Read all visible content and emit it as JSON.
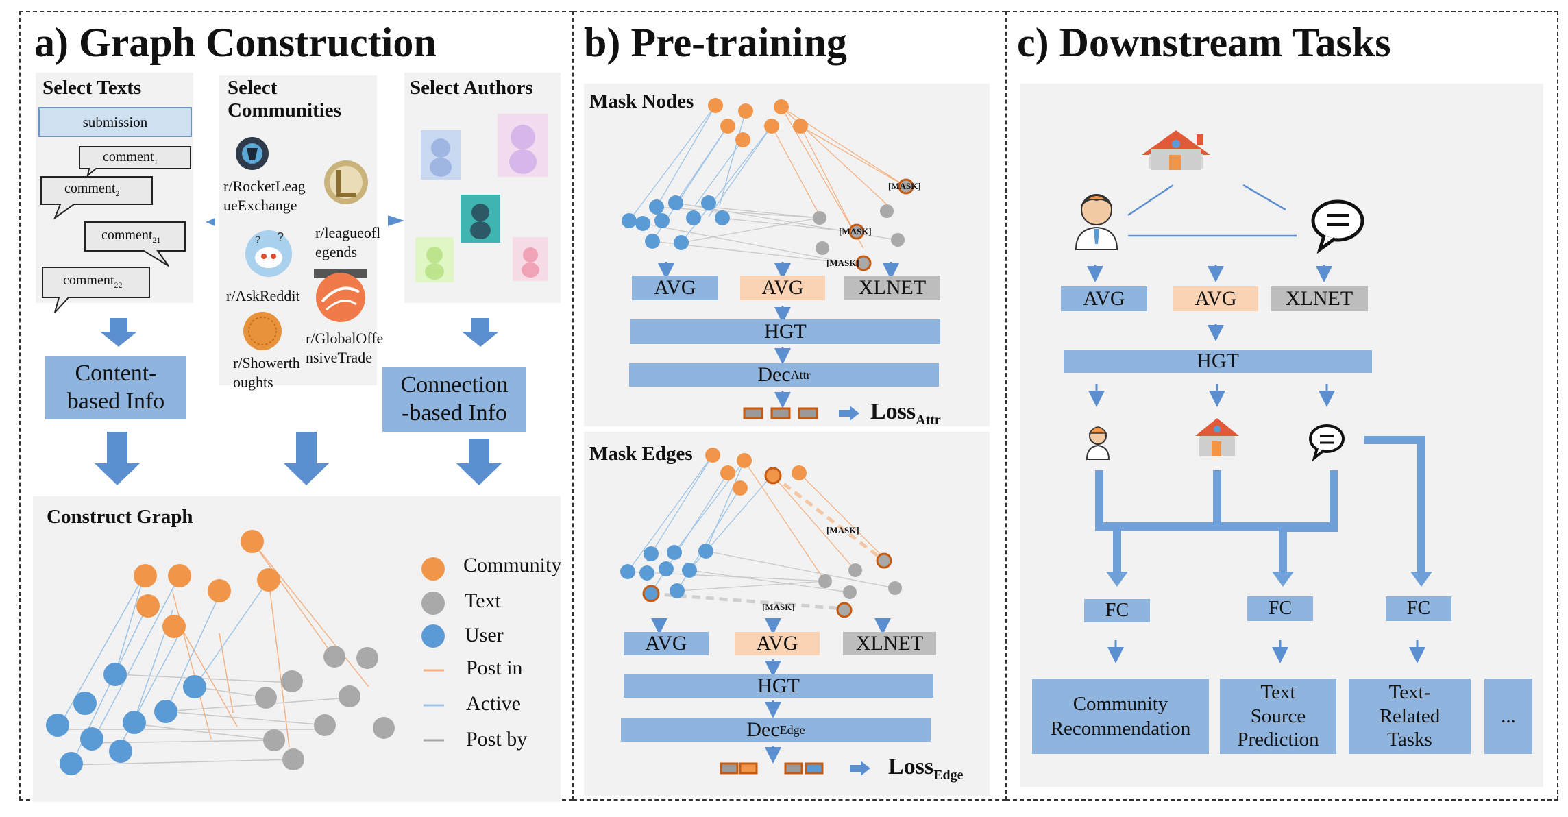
{
  "panels": {
    "a": {
      "title": "a) Graph Construction",
      "select_texts": "Select Texts",
      "select_communities": "Select\nCommunities",
      "select_authors": "Select Authors",
      "submission": "submission",
      "comments": [
        {
          "base": "comment",
          "sub": "1"
        },
        {
          "base": "comment",
          "sub": "2"
        },
        {
          "base": "comment",
          "sub": "21"
        },
        {
          "base": "comment",
          "sub": "22"
        }
      ],
      "communities": [
        "r/RocketLeag\nueExchange",
        "r/AskReddit",
        "r/Showerth\noughts",
        "r/leagueofl\negends",
        "r/GlobalOffe\nnsiveTrade"
      ],
      "content_info": "Content-\nbased Info",
      "connection_info": "Connection\n-based Info",
      "construct_graph": "Construct Graph",
      "legend": [
        "Community",
        "Text",
        "User",
        "Post in",
        "Active",
        "Post by"
      ]
    },
    "b": {
      "title": "b) Pre-training",
      "mask_nodes": "Mask Nodes",
      "mask_edges": "Mask Edges",
      "mask_token": "[MASK]",
      "avg": "AVG",
      "xlnet": "XLNET",
      "hgt": "HGT",
      "dec": "Dec",
      "dec_attr_sub": "Attr",
      "dec_edge_sub": "Edge",
      "loss": "Loss",
      "loss_attr_sub": "Attr",
      "loss_edge_sub": "Edge"
    },
    "c": {
      "title": "c) Downstream Tasks",
      "avg": "AVG",
      "xlnet": "XLNET",
      "hgt": "HGT",
      "fc": "FC",
      "tasks": [
        "Community\nRecommendation",
        "Text\nSource\nPrediction",
        "Text-\nRelated\nTasks",
        "..."
      ]
    }
  },
  "colors": {
    "community": "#f0954a",
    "text": "#a9a9a9",
    "user": "#5b9bd5",
    "post_in": "#f4b183",
    "active": "#9dc3e6",
    "post_by": "#a6a6a6",
    "box_blue": "#8fb4de",
    "box_peach": "#f9d3b3",
    "box_gray": "#bdbdbd",
    "mask_ring": "#c55a11"
  }
}
